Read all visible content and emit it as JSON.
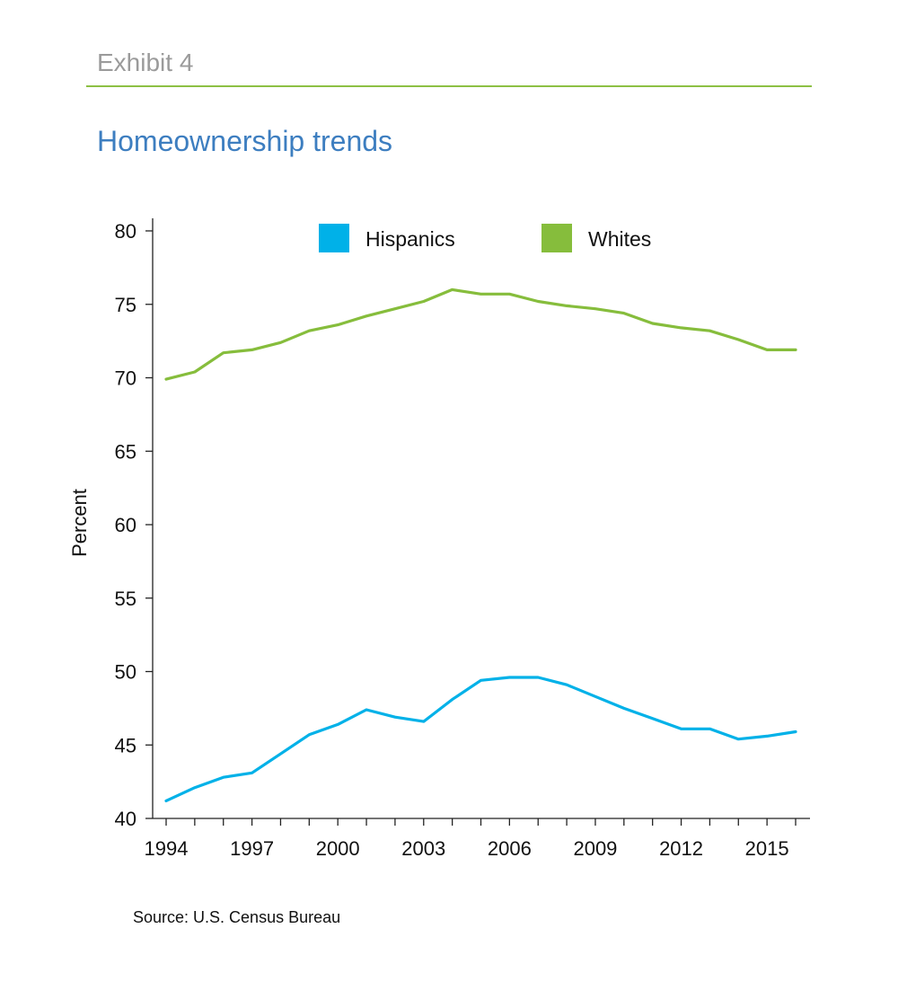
{
  "exhibit": "Exhibit 4",
  "source": "Source: U.S. Census Bureau",
  "colors": {
    "hispanics": "#00b1e8",
    "whites": "#86bd3c",
    "axis": "#222222",
    "exhibit": "#9b9b9b",
    "title": "#3d7ec0",
    "rule": "#8dc044"
  },
  "chart_data": {
    "type": "line",
    "title": "Homeownership trends",
    "xlabel": "",
    "ylabel": "Percent",
    "ylim": [
      40,
      80
    ],
    "yticks": [
      40,
      45,
      50,
      55,
      60,
      65,
      70,
      75,
      80
    ],
    "xlim": [
      1994,
      2016
    ],
    "xticks": [
      1994,
      1997,
      2000,
      2003,
      2006,
      2009,
      2012,
      2015
    ],
    "grid": false,
    "legend_position": "top",
    "x": [
      1994,
      1995,
      1996,
      1997,
      1998,
      1999,
      2000,
      2001,
      2002,
      2003,
      2004,
      2005,
      2006,
      2007,
      2008,
      2009,
      2010,
      2011,
      2012,
      2013,
      2014,
      2015,
      2016
    ],
    "series": [
      {
        "name": "Hispanics",
        "values": [
          41.2,
          42.1,
          42.8,
          43.1,
          44.4,
          45.7,
          46.4,
          47.4,
          46.9,
          46.6,
          48.1,
          49.4,
          49.6,
          49.6,
          49.1,
          48.3,
          47.5,
          46.8,
          46.1,
          46.1,
          45.4,
          45.6,
          45.9
        ]
      },
      {
        "name": "Whites",
        "values": [
          69.9,
          70.4,
          71.7,
          71.9,
          72.4,
          73.2,
          73.6,
          74.2,
          74.7,
          75.2,
          76.0,
          75.7,
          75.7,
          75.2,
          74.9,
          74.7,
          74.4,
          73.7,
          73.4,
          73.2,
          72.6,
          71.9,
          71.9
        ]
      }
    ]
  }
}
